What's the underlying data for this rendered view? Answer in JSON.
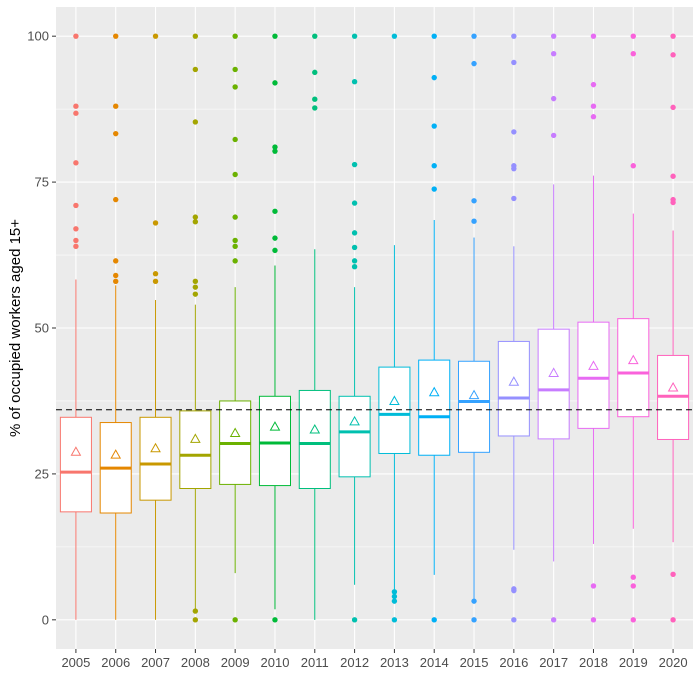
{
  "chart_data": {
    "type": "boxplot",
    "title": "",
    "xlabel": "",
    "ylabel": "% of occupied workers aged 15+",
    "ylim": [
      -5,
      105
    ],
    "y_ticks": [
      0,
      25,
      50,
      75,
      100
    ],
    "y_tick_labels": [
      "0",
      "25",
      "50",
      "75",
      "100"
    ],
    "grid": true,
    "legend": "none",
    "reference_line": {
      "y": 36,
      "style": "dashed",
      "color": "#000000"
    },
    "categories": [
      "2005",
      "2006",
      "2007",
      "2008",
      "2009",
      "2010",
      "2011",
      "2012",
      "2013",
      "2014",
      "2015",
      "2016",
      "2017",
      "2018",
      "2019",
      "2020"
    ],
    "series": [
      {
        "category": "2005",
        "color": "#F8766D",
        "whisker_low": 0,
        "q1": 18.5,
        "median": 25.3,
        "q3": 34.7,
        "whisker_high": 58.3,
        "mean": 28.8,
        "outliers": [
          64,
          65,
          67,
          71,
          78.3,
          86.8,
          88,
          100
        ]
      },
      {
        "category": "2006",
        "color": "#E58700",
        "whisker_low": 0,
        "q1": 18.3,
        "median": 26,
        "q3": 33.8,
        "whisker_high": 57.3,
        "mean": 28.3,
        "outliers": [
          58,
          59,
          61.5,
          72,
          83.3,
          88,
          100
        ]
      },
      {
        "category": "2007",
        "color": "#C99800",
        "whisker_low": 0,
        "q1": 20.5,
        "median": 26.7,
        "q3": 34.7,
        "whisker_high": 54.8,
        "mean": 29.4,
        "outliers": [
          58,
          59.3,
          68,
          100
        ]
      },
      {
        "category": "2008",
        "color": "#A3A500",
        "whisker_low": 1.5,
        "q1": 22.5,
        "median": 28.2,
        "q3": 35.8,
        "whisker_high": 54,
        "mean": 31,
        "outliers": [
          0,
          1.5,
          55.8,
          57,
          58,
          68.2,
          69,
          85.3,
          94.3,
          100
        ]
      },
      {
        "category": "2009",
        "color": "#6BB100",
        "whisker_low": 8,
        "q1": 23.2,
        "median": 30.2,
        "q3": 37.5,
        "whisker_high": 57,
        "mean": 32,
        "outliers": [
          0,
          61.5,
          64,
          65,
          69,
          76.3,
          82.3,
          91.3,
          94.3,
          100
        ]
      },
      {
        "category": "2010",
        "color": "#00BA38",
        "whisker_low": 1.8,
        "q1": 23,
        "median": 30.3,
        "q3": 38.3,
        "whisker_high": 60.7,
        "mean": 33.1,
        "outliers": [
          0,
          63.3,
          65.4,
          70,
          80.3,
          81,
          92,
          100
        ]
      },
      {
        "category": "2011",
        "color": "#00BF7D",
        "whisker_low": 0,
        "q1": 22.5,
        "median": 30.2,
        "q3": 39.3,
        "whisker_high": 63.5,
        "mean": 32.6,
        "outliers": [
          87.7,
          89.2,
          93.8,
          100
        ]
      },
      {
        "category": "2012",
        "color": "#00C0AF",
        "whisker_low": 6,
        "q1": 24.5,
        "median": 32.2,
        "q3": 38.3,
        "whisker_high": 57,
        "mean": 34,
        "outliers": [
          0,
          60.5,
          61.5,
          63.8,
          66.3,
          71.4,
          78,
          92.2,
          100
        ]
      },
      {
        "category": "2013",
        "color": "#00BCD8",
        "whisker_low": 5,
        "q1": 28.5,
        "median": 35.2,
        "q3": 43.3,
        "whisker_high": 64.2,
        "mean": 37.5,
        "outliers": [
          0,
          3.2,
          4,
          4.8,
          100
        ]
      },
      {
        "category": "2014",
        "color": "#00B0F6",
        "whisker_low": 7.7,
        "q1": 28.2,
        "median": 34.8,
        "q3": 44.5,
        "whisker_high": 68.5,
        "mean": 39,
        "outliers": [
          0,
          73.8,
          77.8,
          84.6,
          92.9,
          100
        ]
      },
      {
        "category": "2015",
        "color": "#35A2FF",
        "whisker_low": 3.2,
        "q1": 28.7,
        "median": 37.4,
        "q3": 44.3,
        "whisker_high": 65.5,
        "mean": 38.5,
        "outliers": [
          0,
          3.2,
          68.3,
          71.8,
          95.3,
          100
        ]
      },
      {
        "category": "2016",
        "color": "#9590FF",
        "whisker_low": 12,
        "q1": 31.5,
        "median": 38,
        "q3": 47.7,
        "whisker_high": 64,
        "mean": 40.8,
        "outliers": [
          0,
          5,
          5.3,
          72.2,
          77.3,
          77.8,
          83.6,
          95.5,
          100
        ]
      },
      {
        "category": "2017",
        "color": "#C77CFF",
        "whisker_low": 10,
        "q1": 31,
        "median": 39.4,
        "q3": 49.8,
        "whisker_high": 74.6,
        "mean": 42.3,
        "outliers": [
          0,
          83,
          89.3,
          97,
          100
        ]
      },
      {
        "category": "2018",
        "color": "#E76BF3",
        "whisker_low": 13,
        "q1": 32.8,
        "median": 41.4,
        "q3": 51,
        "whisker_high": 76.1,
        "mean": 43.5,
        "outliers": [
          0,
          5.8,
          86.2,
          88,
          91.7,
          100
        ]
      },
      {
        "category": "2019",
        "color": "#FA62DB",
        "whisker_low": 15.6,
        "q1": 34.8,
        "median": 42.3,
        "q3": 51.6,
        "whisker_high": 69.6,
        "mean": 44.5,
        "outliers": [
          0,
          5.8,
          7.3,
          77.8,
          97,
          100
        ]
      },
      {
        "category": "2020",
        "color": "#FF62BC",
        "whisker_low": 13.3,
        "q1": 30.9,
        "median": 38.3,
        "q3": 45.3,
        "whisker_high": 66.7,
        "mean": 39.8,
        "outliers": [
          0,
          7.8,
          71.5,
          72,
          76,
          87.8,
          96.8,
          100
        ]
      }
    ]
  }
}
